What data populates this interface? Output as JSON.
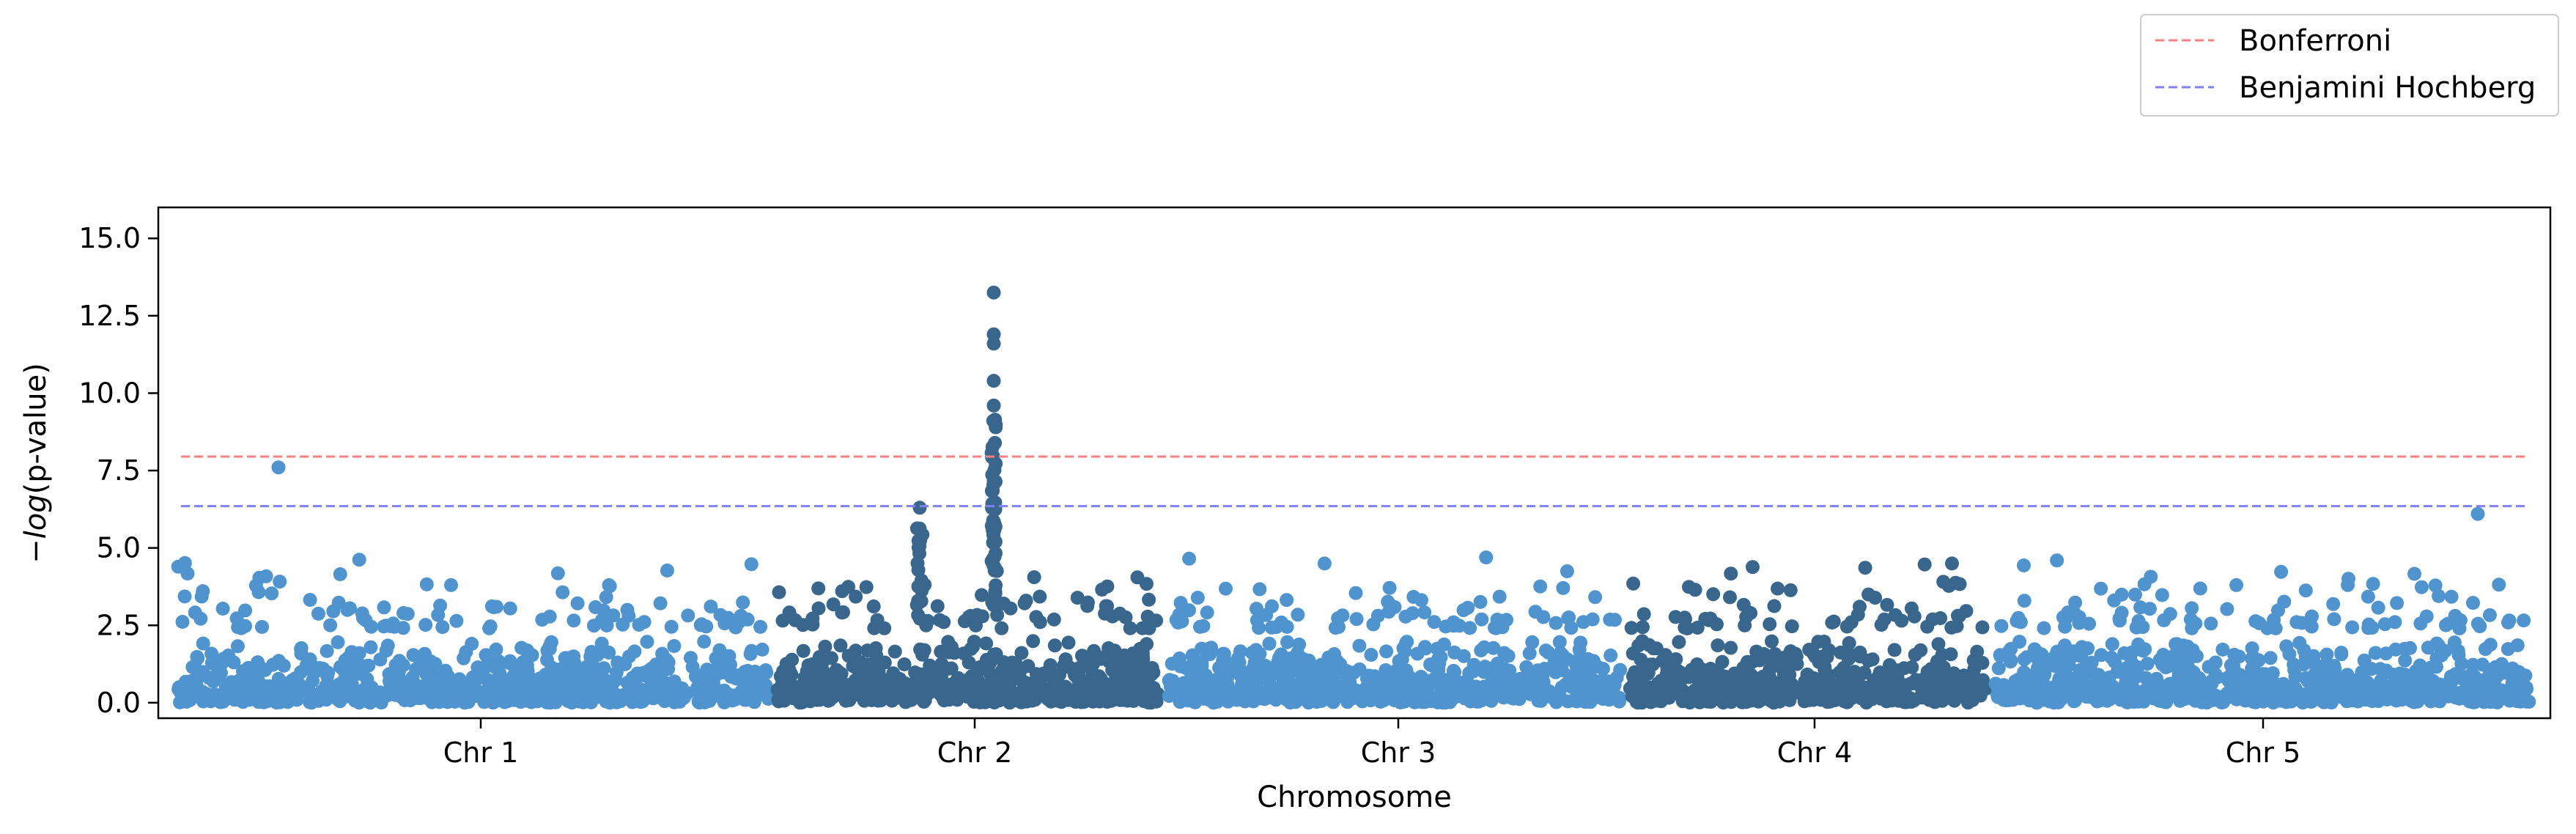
{
  "chart_data": {
    "type": "scatter",
    "title": "",
    "xlabel": "Chromosome",
    "ylabel_prefix": "−",
    "ylabel_italic": "log",
    "ylabel_rest": "(p-value)",
    "ylim": [
      -0.5,
      16
    ],
    "yticks": [
      0.0,
      2.5,
      5.0,
      7.5,
      10.0,
      12.5,
      15.0
    ],
    "ytick_labels": [
      "0.0",
      "2.5",
      "5.0",
      "7.5",
      "10.0",
      "12.5",
      "15.0"
    ],
    "grid": false,
    "legend_position": "top-right, outside axes",
    "chromosomes": [
      {
        "label": "Chr 1",
        "color": "#4f94ce"
      },
      {
        "label": "Chr 2",
        "color": "#38668d"
      },
      {
        "label": "Chr 3",
        "color": "#4f94ce"
      },
      {
        "label": "Chr 4",
        "color": "#38668d"
      },
      {
        "label": "Chr 5",
        "color": "#4f94ce"
      }
    ],
    "thresholds": [
      {
        "name": "Bonferroni",
        "value": 7.95,
        "color": "#ff7f7f"
      },
      {
        "name": "Benjamini Hochberg",
        "value": 6.35,
        "color": "#7f7fff"
      }
    ],
    "notable_points": [
      {
        "chromosome": "Chr 1",
        "y": 7.6
      },
      {
        "chromosome": "Chr 2",
        "y": 13.25
      },
      {
        "chromosome": "Chr 2",
        "y": 11.9
      },
      {
        "chromosome": "Chr 2",
        "y": 11.6
      },
      {
        "chromosome": "Chr 2",
        "y": 10.4
      },
      {
        "chromosome": "Chr 2",
        "y": 9.6
      },
      {
        "chromosome": "Chr 2",
        "y": 6.3
      },
      {
        "chromosome": "Chr 5",
        "y": 6.1
      }
    ]
  }
}
